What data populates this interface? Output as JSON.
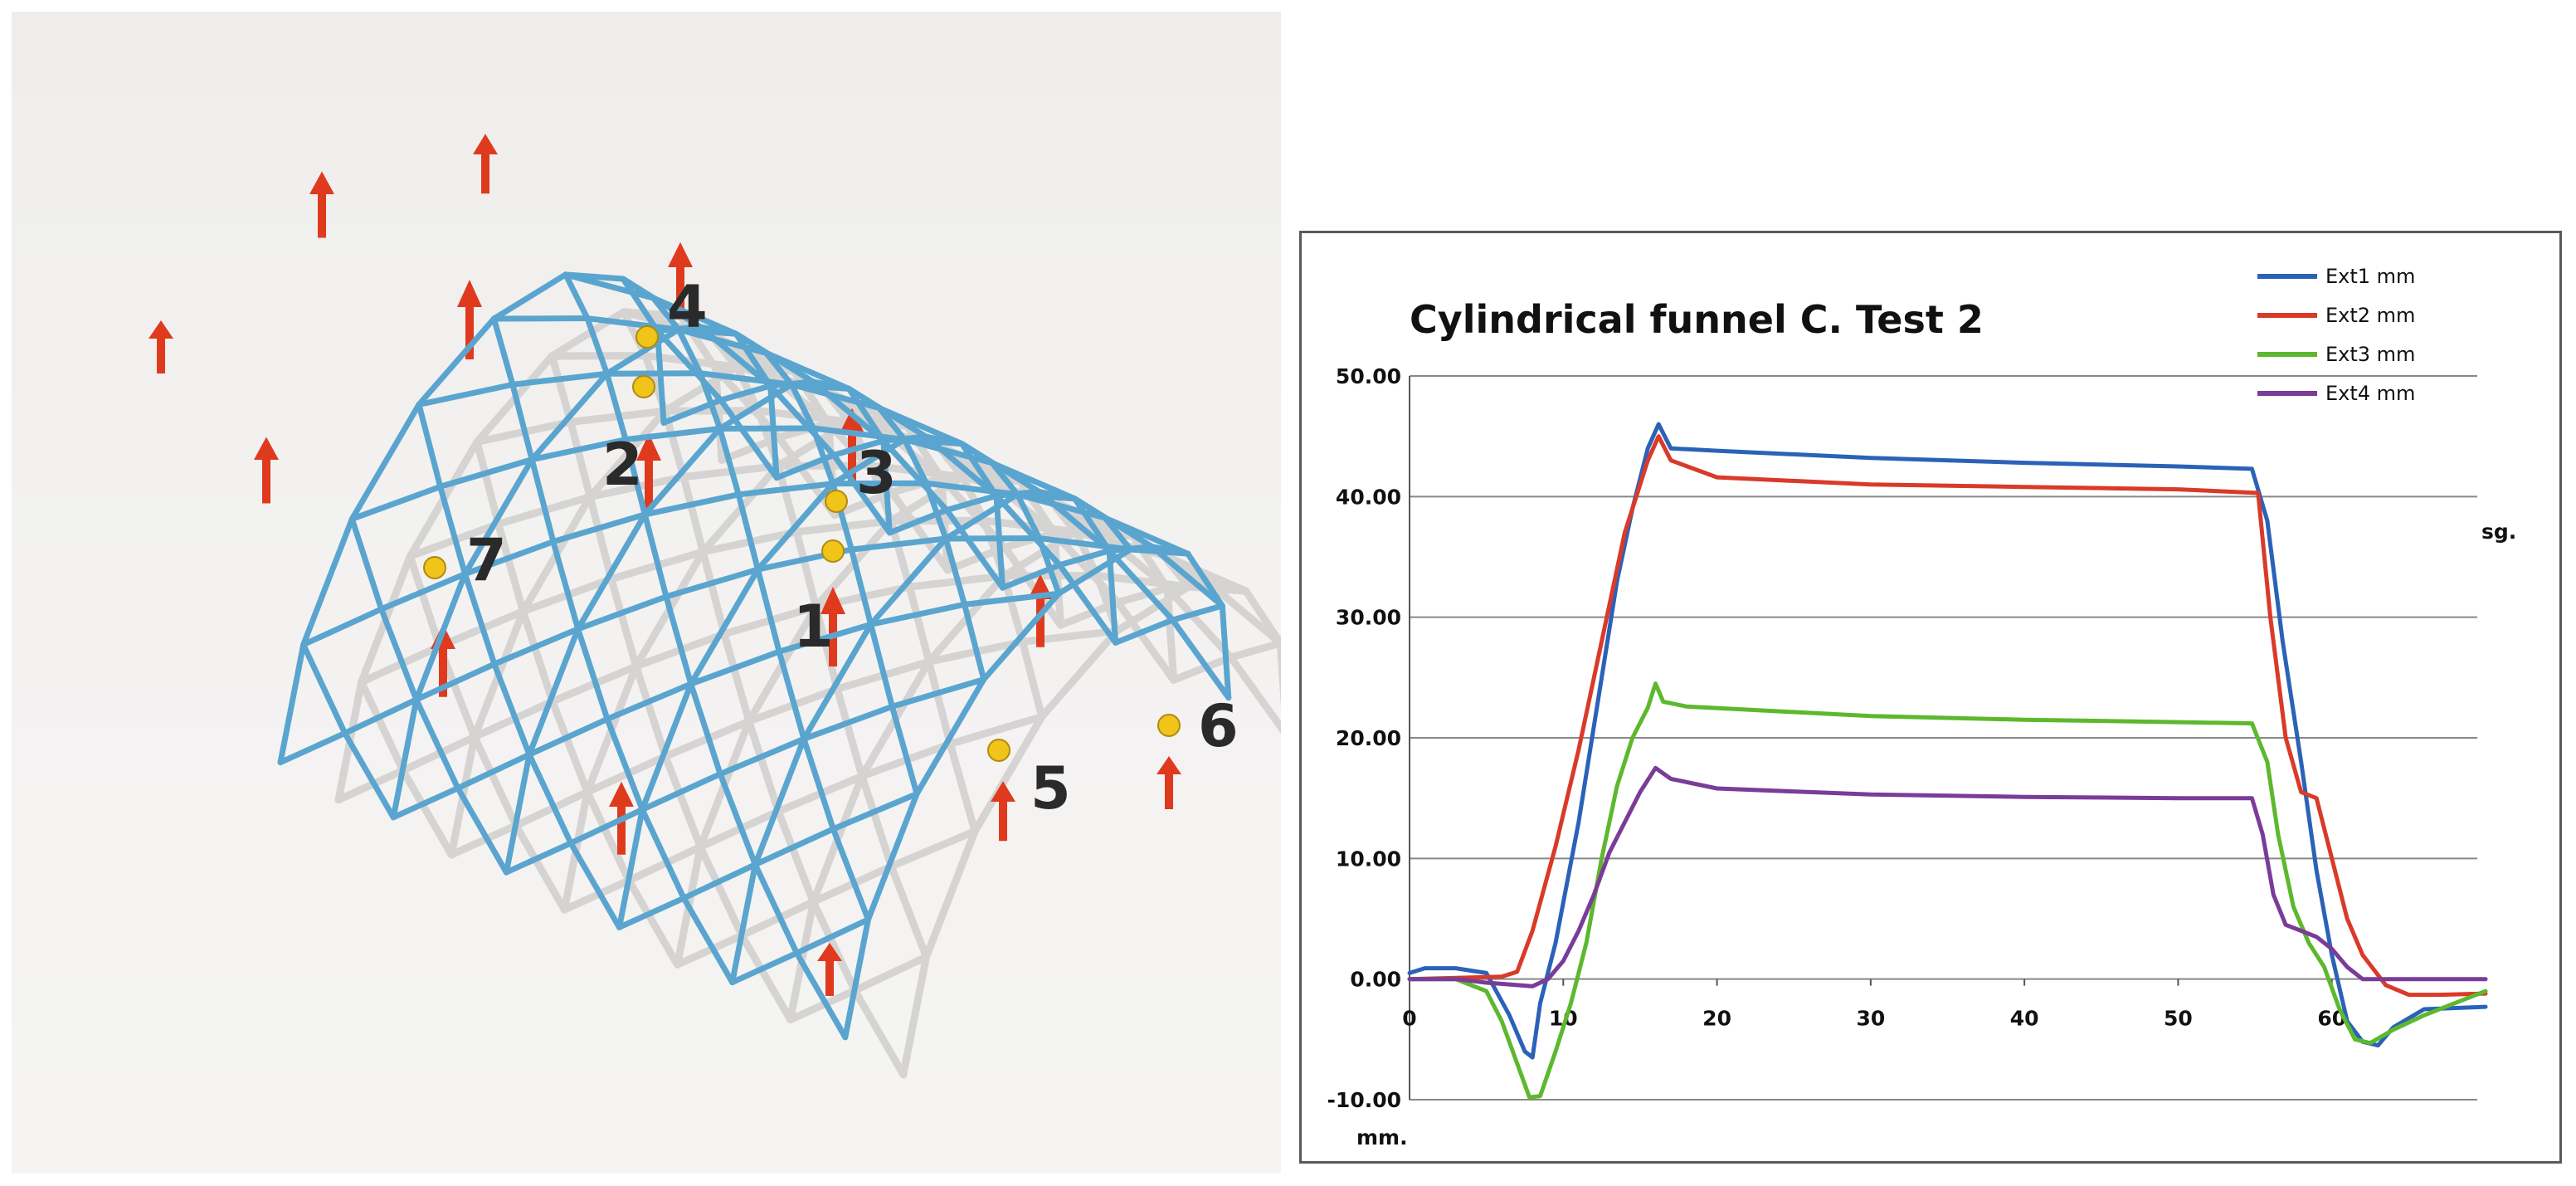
{
  "structure": {
    "node_labels": [
      "1",
      "2",
      "3",
      "4",
      "5",
      "6",
      "7"
    ],
    "colors": {
      "bar": "#5aa5cf",
      "shadow": "#d6d4d2",
      "load_arrow": "#e03a1e",
      "sensor": "#f0c419"
    }
  },
  "chart_data": {
    "type": "line",
    "title": "Cylindrical funnel C. Test 2",
    "xlabel": "sg.",
    "ylabel": "mm.",
    "xlim": [
      0,
      70
    ],
    "ylim": [
      -10,
      50
    ],
    "x_ticks": [
      0,
      10,
      20,
      30,
      40,
      50,
      60
    ],
    "y_ticks": [
      "-10.00",
      "0.00",
      "10.00",
      "20.00",
      "30.00",
      "40.00",
      "50.00"
    ],
    "grid": "horizontal",
    "legend": "top-right",
    "series": [
      {
        "name": "Ext1 mm",
        "color": "#2b62b8",
        "points": [
          [
            0,
            0.5
          ],
          [
            1,
            0.9
          ],
          [
            3,
            0.9
          ],
          [
            5,
            0.5
          ],
          [
            6.5,
            -3
          ],
          [
            7.5,
            -6
          ],
          [
            8,
            -6.5
          ],
          [
            8.5,
            -2
          ],
          [
            9.5,
            3
          ],
          [
            11,
            13
          ],
          [
            12.5,
            25
          ],
          [
            13.5,
            33
          ],
          [
            14.5,
            39
          ],
          [
            15.5,
            44
          ],
          [
            16.2,
            46
          ],
          [
            17,
            44
          ],
          [
            20,
            43.8
          ],
          [
            30,
            43.2
          ],
          [
            40,
            42.8
          ],
          [
            50,
            42.5
          ],
          [
            54.8,
            42.3
          ],
          [
            55.8,
            38
          ],
          [
            56.8,
            28
          ],
          [
            58,
            18
          ],
          [
            59,
            9
          ],
          [
            60,
            2
          ],
          [
            61,
            -3.5
          ],
          [
            62,
            -5.2
          ],
          [
            63,
            -5.5
          ],
          [
            64,
            -4
          ],
          [
            66,
            -2.5
          ],
          [
            70,
            -2.3
          ]
        ]
      },
      {
        "name": "Ext2 mm",
        "color": "#d93a2a",
        "points": [
          [
            0,
            0
          ],
          [
            6,
            0.2
          ],
          [
            7,
            0.6
          ],
          [
            8,
            4
          ],
          [
            9.5,
            11
          ],
          [
            11,
            19
          ],
          [
            12.5,
            28
          ],
          [
            14,
            37
          ],
          [
            15.5,
            43
          ],
          [
            16.2,
            45
          ],
          [
            17,
            43
          ],
          [
            20,
            41.6
          ],
          [
            30,
            41
          ],
          [
            40,
            40.8
          ],
          [
            50,
            40.6
          ],
          [
            55.2,
            40.3
          ],
          [
            56,
            30
          ],
          [
            57,
            20
          ],
          [
            58,
            15.5
          ],
          [
            59,
            15
          ],
          [
            60,
            10
          ],
          [
            61,
            5
          ],
          [
            62,
            2
          ],
          [
            63.5,
            -0.5
          ],
          [
            65,
            -1.3
          ],
          [
            67,
            -1.3
          ],
          [
            70,
            -1.2
          ]
        ]
      },
      {
        "name": "Ext3 mm",
        "color": "#5db82e",
        "points": [
          [
            0,
            0
          ],
          [
            3,
            0
          ],
          [
            5,
            -1
          ],
          [
            6,
            -3.5
          ],
          [
            7,
            -7
          ],
          [
            7.8,
            -9.8
          ],
          [
            8.5,
            -9.7
          ],
          [
            9.5,
            -6
          ],
          [
            10.5,
            -2
          ],
          [
            11.5,
            3
          ],
          [
            12.5,
            10
          ],
          [
            13.5,
            16
          ],
          [
            14.5,
            20
          ],
          [
            15.5,
            22.5
          ],
          [
            16,
            24.5
          ],
          [
            16.5,
            23
          ],
          [
            18,
            22.6
          ],
          [
            30,
            21.8
          ],
          [
            40,
            21.5
          ],
          [
            50,
            21.3
          ],
          [
            54.8,
            21.2
          ],
          [
            55.8,
            18
          ],
          [
            56.5,
            12
          ],
          [
            57.5,
            6
          ],
          [
            58.5,
            3
          ],
          [
            59.5,
            1
          ],
          [
            60.5,
            -2.5
          ],
          [
            61.5,
            -5
          ],
          [
            62.5,
            -5.3
          ],
          [
            64,
            -4.2
          ],
          [
            66,
            -3
          ],
          [
            68,
            -2
          ],
          [
            70,
            -1
          ]
        ]
      },
      {
        "name": "Ext4 mm",
        "color": "#7a3c98",
        "points": [
          [
            0,
            0
          ],
          [
            3,
            0
          ],
          [
            5,
            -0.3
          ],
          [
            7,
            -0.5
          ],
          [
            8,
            -0.6
          ],
          [
            9,
            0
          ],
          [
            10,
            1.5
          ],
          [
            11,
            4
          ],
          [
            12,
            7
          ],
          [
            13,
            10.5
          ],
          [
            14,
            13
          ],
          [
            15,
            15.5
          ],
          [
            16,
            17.5
          ],
          [
            17,
            16.6
          ],
          [
            20,
            15.8
          ],
          [
            30,
            15.3
          ],
          [
            40,
            15.1
          ],
          [
            50,
            15
          ],
          [
            54.8,
            15
          ],
          [
            55.5,
            12
          ],
          [
            56.2,
            7
          ],
          [
            57,
            4.5
          ],
          [
            58,
            4
          ],
          [
            59,
            3.5
          ],
          [
            60,
            2.5
          ],
          [
            61,
            1
          ],
          [
            62,
            0
          ],
          [
            66,
            0
          ],
          [
            70,
            0
          ]
        ]
      }
    ]
  }
}
